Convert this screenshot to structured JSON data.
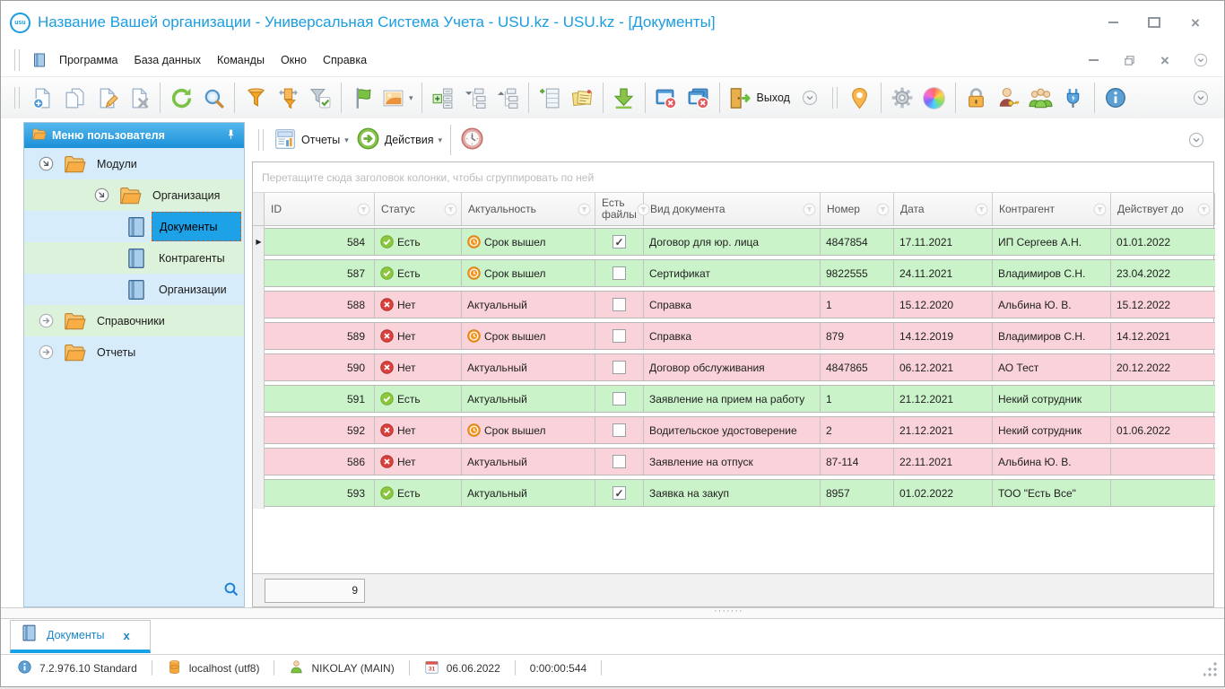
{
  "window": {
    "title": "Название Вашей организации - Универсальная Система Учета - USU.kz - USU.kz - [Документы]",
    "logo_text": "usu",
    "controls": [
      "minimize",
      "maximize",
      "close"
    ]
  },
  "menu": {
    "items": [
      "Программа",
      "База данных",
      "Команды",
      "Окно",
      "Справка"
    ],
    "mdi_controls": [
      "minimize-child",
      "restore-child",
      "close-child",
      "menu-overflow"
    ]
  },
  "toolbar": {
    "items": [
      {
        "kind": "grip"
      },
      {
        "kind": "button",
        "name": "new-document"
      },
      {
        "kind": "button",
        "name": "copy-document"
      },
      {
        "kind": "button",
        "name": "edit-document"
      },
      {
        "kind": "button",
        "name": "delete-document"
      },
      {
        "kind": "sep"
      },
      {
        "kind": "button",
        "name": "refresh"
      },
      {
        "kind": "button",
        "name": "search"
      },
      {
        "kind": "sep"
      },
      {
        "kind": "button",
        "name": "filter"
      },
      {
        "kind": "button",
        "name": "filter-columns"
      },
      {
        "kind": "button",
        "name": "filter-apply"
      },
      {
        "kind": "sep"
      },
      {
        "kind": "button",
        "name": "flag"
      },
      {
        "kind": "button",
        "name": "background-image",
        "caret": true
      },
      {
        "kind": "sep"
      },
      {
        "kind": "button",
        "name": "expand-rows"
      },
      {
        "kind": "button",
        "name": "collapse-tree"
      },
      {
        "kind": "button",
        "name": "expand-tree"
      },
      {
        "kind": "sep"
      },
      {
        "kind": "button",
        "name": "add-column"
      },
      {
        "kind": "button",
        "name": "notes"
      },
      {
        "kind": "sep"
      },
      {
        "kind": "button",
        "name": "import"
      },
      {
        "kind": "sep"
      },
      {
        "kind": "button",
        "name": "close-window"
      },
      {
        "kind": "button",
        "name": "close-all-windows"
      },
      {
        "kind": "sep"
      },
      {
        "kind": "button",
        "name": "exit",
        "label": "Выход"
      },
      {
        "kind": "overflow"
      },
      {
        "kind": "grip"
      },
      {
        "kind": "button",
        "name": "location"
      },
      {
        "kind": "sep"
      },
      {
        "kind": "button",
        "name": "settings"
      },
      {
        "kind": "button",
        "name": "colors"
      },
      {
        "kind": "sep"
      },
      {
        "kind": "button",
        "name": "lock"
      },
      {
        "kind": "button",
        "name": "user-permissions"
      },
      {
        "kind": "button",
        "name": "users"
      },
      {
        "kind": "button",
        "name": "plugin"
      },
      {
        "kind": "sep"
      },
      {
        "kind": "button",
        "name": "info"
      },
      {
        "kind": "overflow",
        "end": true
      }
    ]
  },
  "toolbar2": {
    "reports_label": "Отчеты",
    "actions_label": "Действия",
    "buttons": [
      "reports",
      "actions",
      "timer",
      "toolbar-overflow"
    ]
  },
  "sidebar": {
    "header": "Меню пользователя",
    "tree": [
      {
        "label": "Модули",
        "level": 0,
        "icon": "folder",
        "state": "expanded"
      },
      {
        "label": "Организация",
        "level": 1,
        "icon": "folder",
        "state": "expanded"
      },
      {
        "label": "Документы",
        "level": 2,
        "icon": "book",
        "selected": true
      },
      {
        "label": "Контрагенты",
        "level": 2,
        "icon": "book"
      },
      {
        "label": "Организации",
        "level": 2,
        "icon": "book"
      },
      {
        "label": "Справочники",
        "level": 0,
        "icon": "folder",
        "state": "collapsed"
      },
      {
        "label": "Отчеты",
        "level": 0,
        "icon": "folder",
        "state": "collapsed"
      }
    ]
  },
  "grid": {
    "group_hint": "Перетащите сюда заголовок колонки, чтобы сгруппировать по ней",
    "columns": [
      "ID",
      "Статус",
      "Актуальность",
      "Есть файлы",
      "Вид документа",
      "Номер",
      "Дата",
      "Контрагент",
      "Действует до"
    ],
    "rows": [
      {
        "id": "584",
        "status": "Есть",
        "status_icon": "check",
        "actuality": "Срок вышел",
        "actuality_icon": "clock",
        "has_files": true,
        "doc_type": "Договор для юр. лица",
        "number": "4847854",
        "date": "17.11.2021",
        "contractor": "ИП Сергеев А.Н.",
        "valid_until": "01.01.2022",
        "tone": "green",
        "current": true
      },
      {
        "id": "587",
        "status": "Есть",
        "status_icon": "check",
        "actuality": "Срок вышел",
        "actuality_icon": "clock",
        "has_files": false,
        "doc_type": "Сертификат",
        "number": "9822555",
        "date": "24.11.2021",
        "contractor": "Владимиров С.Н.",
        "valid_until": "23.04.2022",
        "tone": "green",
        "current": false
      },
      {
        "id": "588",
        "status": "Нет",
        "status_icon": "cross",
        "actuality": "Актуальный",
        "actuality_icon": null,
        "has_files": false,
        "doc_type": "Справка",
        "number": "1",
        "date": "15.12.2020",
        "contractor": "Альбина Ю. В.",
        "valid_until": "15.12.2022",
        "tone": "pink",
        "current": false
      },
      {
        "id": "589",
        "status": "Нет",
        "status_icon": "cross",
        "actuality": "Срок вышел",
        "actuality_icon": "clock",
        "has_files": false,
        "doc_type": "Справка",
        "number": "879",
        "date": "14.12.2019",
        "contractor": "Владимиров С.Н.",
        "valid_until": "14.12.2021",
        "tone": "pink",
        "current": false
      },
      {
        "id": "590",
        "status": "Нет",
        "status_icon": "cross",
        "actuality": "Актуальный",
        "actuality_icon": null,
        "has_files": false,
        "doc_type": "Договор обслуживания",
        "number": "4847865",
        "date": "06.12.2021",
        "contractor": "АО Тест",
        "valid_until": "20.12.2022",
        "tone": "pink",
        "current": false
      },
      {
        "id": "591",
        "status": "Есть",
        "status_icon": "check",
        "actuality": "Актуальный",
        "actuality_icon": null,
        "has_files": false,
        "doc_type": "Заявление на прием на работу",
        "number": "1",
        "date": "21.12.2021",
        "contractor": "Некий сотрудник",
        "valid_until": "",
        "tone": "green",
        "current": false
      },
      {
        "id": "592",
        "status": "Нет",
        "status_icon": "cross",
        "actuality": "Срок вышел",
        "actuality_icon": "clock",
        "has_files": false,
        "doc_type": "Водительское удостоверение",
        "number": "2",
        "date": "21.12.2021",
        "contractor": "Некий сотрудник",
        "valid_until": "01.06.2022",
        "tone": "pink",
        "current": false
      },
      {
        "id": "586",
        "status": "Нет",
        "status_icon": "cross",
        "actuality": "Актуальный",
        "actuality_icon": null,
        "has_files": false,
        "doc_type": "Заявление на отпуск",
        "number": "87-114",
        "date": "22.11.2021",
        "contractor": "Альбина Ю. В.",
        "valid_until": "",
        "tone": "pink",
        "current": false
      },
      {
        "id": "593",
        "status": "Есть",
        "status_icon": "check",
        "actuality": "Актуальный",
        "actuality_icon": null,
        "has_files": true,
        "doc_type": "Заявка на закуп",
        "number": "8957",
        "date": "01.02.2022",
        "contractor": "ТОО \"Есть Все\"",
        "valid_until": "",
        "tone": "green",
        "current": false
      }
    ],
    "count": "9"
  },
  "tabs": {
    "active_label": "Документы"
  },
  "statusbar": {
    "version": "7.2.976.10 Standard",
    "database": "localhost (utf8)",
    "user": "NIKOLAY (MAIN)",
    "date": "06.06.2022",
    "timer": "0:00:00:544"
  },
  "colors": {
    "accent": "#1b9de2",
    "row_green": "#cbf3c9",
    "row_pink": "#f9d3d9",
    "selected_node": "#1da2e8",
    "status_yes": "#8dc63f",
    "status_no": "#d9413d",
    "status_expired": "#f7941d"
  }
}
